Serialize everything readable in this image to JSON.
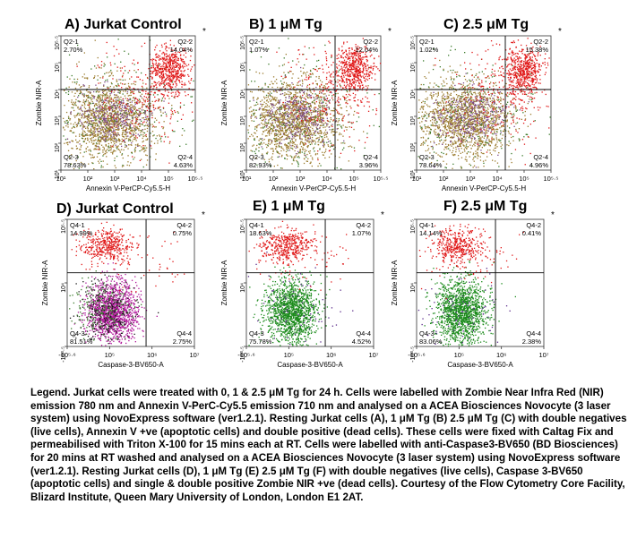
{
  "panels": [
    {
      "id": "A",
      "title": "A) Jurkat Control",
      "type": "annexin",
      "xlabel": "Annexin V-PerCP-Cy5.5-H",
      "ylabel": "Zombie NIR-A",
      "xticks": [
        "10¹",
        "10²",
        "10³",
        "10⁴",
        "10⁵",
        "10⁵·⁵"
      ],
      "yticks": [
        "10⁵·⁵",
        "10⁵",
        "10⁴",
        "10³",
        "10²",
        "10¹"
      ],
      "quadrants": [
        {
          "name": "Q2-1",
          "value": "2.70%"
        },
        {
          "name": "Q2-2",
          "value": "14.04%"
        },
        {
          "name": "Q2-3",
          "value": "78.63%"
        },
        {
          "name": "Q2-4",
          "value": "4.63%"
        }
      ],
      "gate_mark": "*"
    },
    {
      "id": "B",
      "title": "B) 1 μM Tg",
      "type": "annexin",
      "xlabel": "Annexin V-PerCP-Cy5.5-H",
      "ylabel": "Zombie NIR-A",
      "xticks": [
        "10¹",
        "10²",
        "10³",
        "10⁴",
        "10⁵",
        "10⁵·⁵"
      ],
      "yticks": [
        "10⁵·⁵",
        "10⁵",
        "10⁴",
        "10³",
        "10²",
        "10¹"
      ],
      "quadrants": [
        {
          "name": "Q2-1",
          "value": "1.07%"
        },
        {
          "name": "Q2-2",
          "value": "12.04%"
        },
        {
          "name": "Q2-3",
          "value": "82.93%"
        },
        {
          "name": "Q2-4",
          "value": "3.96%"
        }
      ],
      "gate_mark": "*"
    },
    {
      "id": "C",
      "title": "C) 2.5 μM Tg",
      "type": "annexin",
      "xlabel": "Annexin V-PerCP-Cy5.5-H",
      "ylabel": "Zombie NIR-A",
      "xticks": [
        "10¹",
        "10²",
        "10³",
        "10⁴",
        "10⁵",
        "10⁵·⁵"
      ],
      "yticks": [
        "10⁵·⁵",
        "10⁵",
        "10⁴",
        "10³",
        "10²",
        "10¹"
      ],
      "quadrants": [
        {
          "name": "Q2-1",
          "value": "1.02%"
        },
        {
          "name": "Q2-2",
          "value": "15.38%"
        },
        {
          "name": "Q2-3",
          "value": "78.64%"
        },
        {
          "name": "Q2-4",
          "value": "4.96%"
        }
      ],
      "gate_mark": "*"
    },
    {
      "id": "D",
      "title": "D) Jurkat Control",
      "type": "caspase",
      "xlabel": "Caspase-3-BV650-A",
      "ylabel": "Zombie NIR-A",
      "xticks": [
        "-10⁵·⁶",
        "10⁵",
        "10⁶",
        "10⁷"
      ],
      "yticks": [
        "10⁵·⁵",
        "10⁴",
        "-10³·⁵"
      ],
      "quadrants": [
        {
          "name": "Q4-1",
          "value": "14.99%"
        },
        {
          "name": "Q4-2",
          "value": "0.75%"
        },
        {
          "name": "Q4-3",
          "value": "81.51%"
        },
        {
          "name": "Q4-4",
          "value": "2.75%"
        }
      ],
      "gate_mark": "*"
    },
    {
      "id": "E",
      "title": "E) 1 μM Tg",
      "type": "caspase",
      "xlabel": "Caspase-3-BV650-A",
      "ylabel": "Zombie NIR-A",
      "xticks": [
        "-10⁵·⁶",
        "10⁵",
        "10⁶",
        "10⁷"
      ],
      "yticks": [
        "10⁵·⁵",
        "10⁴",
        "-10³·⁵"
      ],
      "quadrants": [
        {
          "name": "Q4-1",
          "value": "18.63%"
        },
        {
          "name": "Q4-2",
          "value": "1.07%"
        },
        {
          "name": "Q4-3",
          "value": "75.78%"
        },
        {
          "name": "Q4-4",
          "value": "4.52%"
        }
      ],
      "gate_mark": "*"
    },
    {
      "id": "F",
      "title": "F) 2.5 μM Tg",
      "type": "caspase",
      "xlabel": "Caspase-3-BV650-A",
      "ylabel": "Zombie NIR-A",
      "xticks": [
        "-10⁵·⁶",
        "10⁵",
        "10⁶",
        "10⁷"
      ],
      "yticks": [
        "10⁵·⁵",
        "10⁴",
        "-10³·⁵"
      ],
      "quadrants": [
        {
          "name": "Q4-1",
          "value": "14.14%"
        },
        {
          "name": "Q4-2",
          "value": "0.41%"
        },
        {
          "name": "Q4-3",
          "value": "83.06%"
        },
        {
          "name": "Q4-4",
          "value": "2.38%"
        }
      ],
      "gate_mark": "*"
    }
  ],
  "legend": {
    "text": "Legend. Jurkat cells were treated with 0, 1 & 2.5 μM Tg for 24 h. Cells were labelled with Zombie Near Infra Red (NIR) emission 780 nm and Annexin V-PerC-Cy5.5 emission 710 nm and analysed on a ACEA Biosciences Novocyte (3 laser system) using NovoExpress software (ver1.2.1). Resting Jurkat cells (A), 1 μM Tg (B) 2.5 μM Tg (C) with double negatives (live cells), Annexin V +ve (apoptotic cells) and double positive (dead cells). These cells were fixed with Caltag Fix and permeabilised with Triton X-100 for 15 mins each at RT. Cells were labelled with anti-Caspase3-BV650 (BD Biosciences) for 20 mins at RT washed and analysed on a ACEA Biosciences Novocyte (3 laser system) using NovoExpress software (ver1.2.1). Resting Jurkat cells (D), 1 μM Tg (E) 2.5 μM Tg (F) with double negatives (live cells), Caspase 3-BV650 (apoptotic cells) and single & double positive Zombie NIR +ve (dead cells). Courtesy of the Flow Cytometry Core Facility, Blizard Institute, Queen Mary University of London, London E1 2AT."
  },
  "colors": {
    "annexin_live": "#9a7a2c",
    "annexin_live_alt": "#7c4a8a",
    "annexin_dead": "#e01818",
    "caspase_live": "#1a8a1a",
    "caspase_control_live": "#b0189a",
    "caspase_control_alt": "#1a1a1a",
    "caspase_dead": "#e01818",
    "scatter_misc": "#3a7a2a"
  },
  "chart_data": [
    {
      "type": "scatter",
      "panel": "A",
      "title": "A) Jurkat Control",
      "xlabel": "Annexin V-PerCP-Cy5.5-H",
      "ylabel": "Zombie NIR-A",
      "series": [
        {
          "name": "Q2-1",
          "values": [
            2.7
          ]
        },
        {
          "name": "Q2-2",
          "values": [
            14.04
          ]
        },
        {
          "name": "Q2-3",
          "values": [
            78.63
          ]
        },
        {
          "name": "Q2-4",
          "values": [
            4.63
          ]
        }
      ]
    },
    {
      "type": "scatter",
      "panel": "B",
      "title": "B) 1 μM Tg",
      "xlabel": "Annexin V-PerCP-Cy5.5-H",
      "ylabel": "Zombie NIR-A",
      "series": [
        {
          "name": "Q2-1",
          "values": [
            1.07
          ]
        },
        {
          "name": "Q2-2",
          "values": [
            12.04
          ]
        },
        {
          "name": "Q2-3",
          "values": [
            82.93
          ]
        },
        {
          "name": "Q2-4",
          "values": [
            3.96
          ]
        }
      ]
    },
    {
      "type": "scatter",
      "panel": "C",
      "title": "C) 2.5 μM Tg",
      "xlabel": "Annexin V-PerCP-Cy5.5-H",
      "ylabel": "Zombie NIR-A",
      "series": [
        {
          "name": "Q2-1",
          "values": [
            1.02
          ]
        },
        {
          "name": "Q2-2",
          "values": [
            15.38
          ]
        },
        {
          "name": "Q2-3",
          "values": [
            78.64
          ]
        },
        {
          "name": "Q2-4",
          "values": [
            4.96
          ]
        }
      ]
    },
    {
      "type": "scatter",
      "panel": "D",
      "title": "D) Jurkat Control",
      "xlabel": "Caspase-3-BV650-A",
      "ylabel": "Zombie NIR-A",
      "series": [
        {
          "name": "Q4-1",
          "values": [
            14.99
          ]
        },
        {
          "name": "Q4-2",
          "values": [
            0.75
          ]
        },
        {
          "name": "Q4-3",
          "values": [
            81.51
          ]
        },
        {
          "name": "Q4-4",
          "values": [
            2.75
          ]
        }
      ]
    },
    {
      "type": "scatter",
      "panel": "E",
      "title": "E) 1 μM Tg",
      "xlabel": "Caspase-3-BV650-A",
      "ylabel": "Zombie NIR-A",
      "series": [
        {
          "name": "Q4-1",
          "values": [
            18.63
          ]
        },
        {
          "name": "Q4-2",
          "values": [
            1.07
          ]
        },
        {
          "name": "Q4-3",
          "values": [
            75.78
          ]
        },
        {
          "name": "Q4-4",
          "values": [
            4.52
          ]
        }
      ]
    },
    {
      "type": "scatter",
      "panel": "F",
      "title": "F) 2.5 μM Tg",
      "xlabel": "Caspase-3-BV650-A",
      "ylabel": "Zombie NIR-A",
      "series": [
        {
          "name": "Q4-1",
          "values": [
            14.14
          ]
        },
        {
          "name": "Q4-2",
          "values": [
            0.41
          ]
        },
        {
          "name": "Q4-3",
          "values": [
            83.06
          ]
        },
        {
          "name": "Q4-4",
          "values": [
            2.38
          ]
        }
      ]
    }
  ]
}
